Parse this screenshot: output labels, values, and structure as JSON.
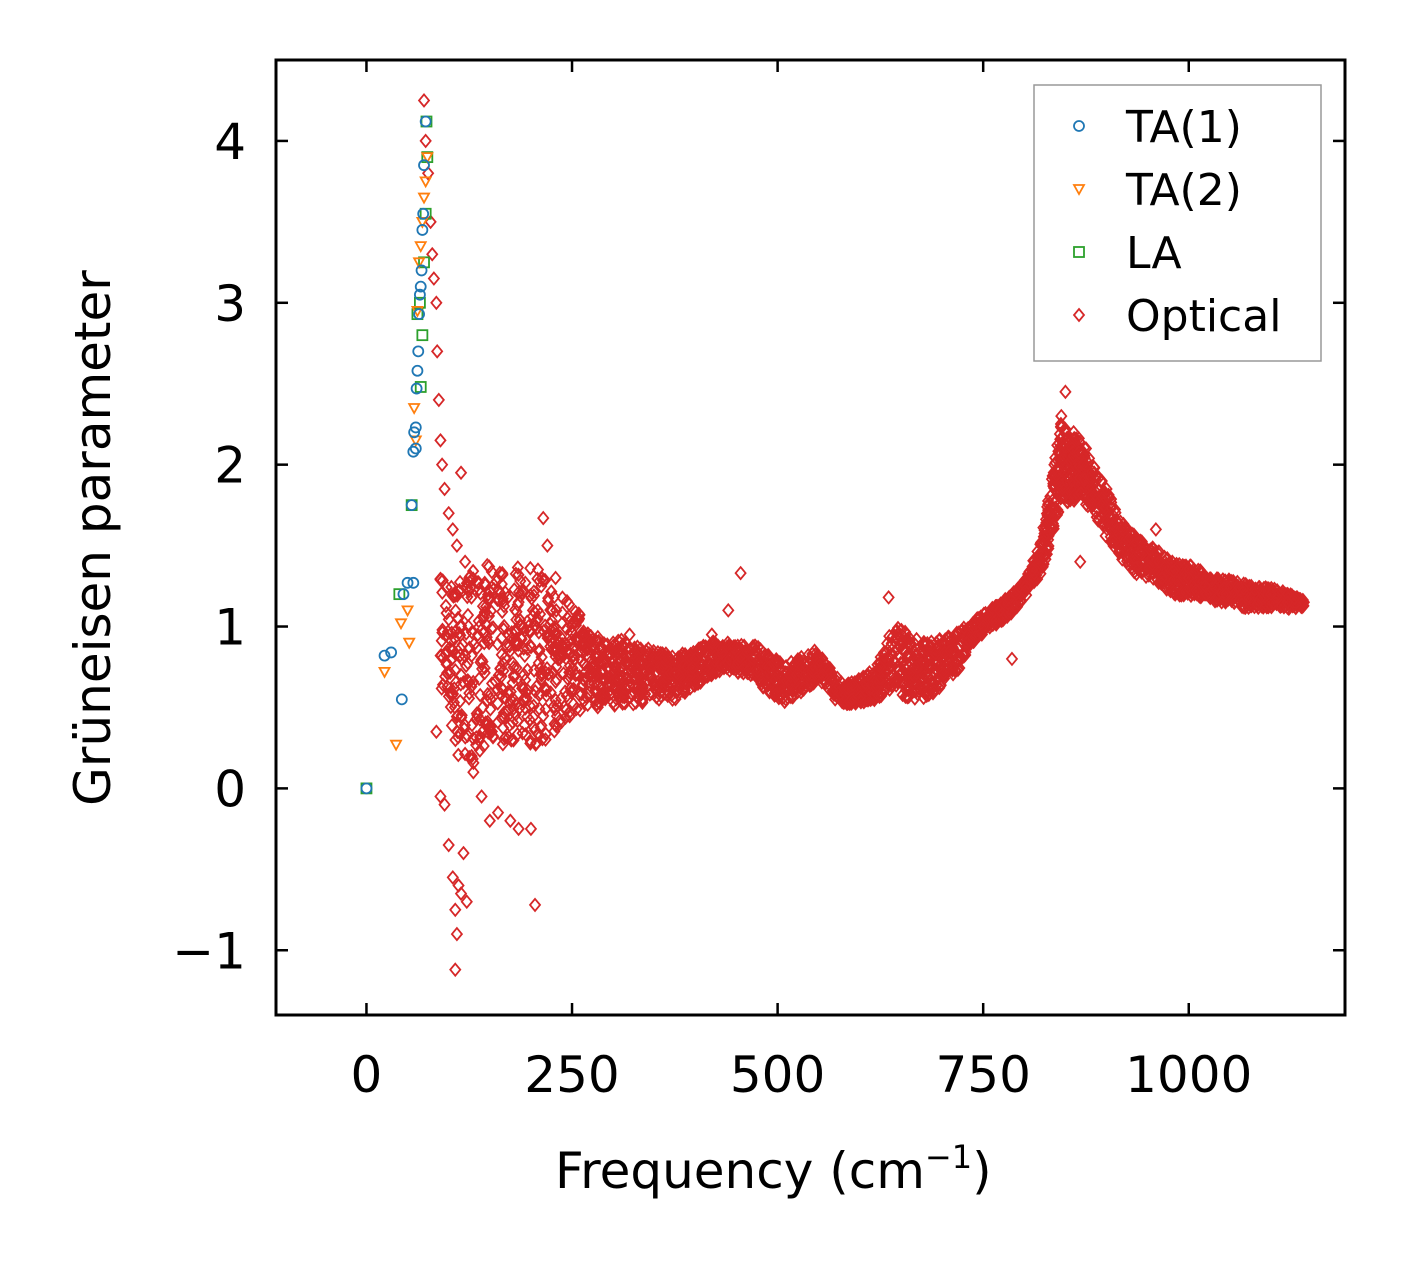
{
  "chart_data": {
    "type": "scatter",
    "title": "",
    "xlabel": "Frequency (cm",
    "xlabel_sup": "−1",
    "xlabel_close": ")",
    "ylabel": "Grüneisen parameter",
    "xlim": [
      -110,
      1190
    ],
    "ylim": [
      -1.4,
      4.5
    ],
    "xticks": [
      0,
      250,
      500,
      750,
      1000
    ],
    "xtick_labels": [
      "0",
      "250",
      "500",
      "750",
      "1000"
    ],
    "yticks": [
      -1,
      0,
      1,
      2,
      3,
      4
    ],
    "ytick_labels": [
      "−1",
      "0",
      "1",
      "2",
      "3",
      "4"
    ],
    "legend_position": "top-right",
    "series": [
      {
        "name": "TA(1)",
        "marker": "circle",
        "color": "#1f77b4",
        "points": [
          [
            0,
            0
          ],
          [
            22,
            0.82
          ],
          [
            30,
            0.84
          ],
          [
            43,
            0.55
          ],
          [
            45,
            1.2
          ],
          [
            50,
            1.27
          ],
          [
            55,
            1.75
          ],
          [
            57,
            1.27
          ],
          [
            57,
            2.08
          ],
          [
            58,
            2.2
          ],
          [
            60,
            2.23
          ],
          [
            60,
            2.1
          ],
          [
            61,
            2.47
          ],
          [
            62,
            2.58
          ],
          [
            63,
            2.7
          ],
          [
            64,
            2.93
          ],
          [
            65,
            3.05
          ],
          [
            66,
            3.1
          ],
          [
            67,
            3.2
          ],
          [
            68,
            3.45
          ],
          [
            69,
            3.55
          ],
          [
            70,
            3.85
          ],
          [
            72,
            4.12
          ]
        ]
      },
      {
        "name": "TA(2)",
        "marker": "triangle-down",
        "color": "#ff7f0e",
        "points": [
          [
            22,
            0.72
          ],
          [
            36,
            0.27
          ],
          [
            42,
            1.02
          ],
          [
            50,
            1.1
          ],
          [
            52,
            0.9
          ],
          [
            58,
            2.35
          ],
          [
            60,
            2.15
          ],
          [
            62,
            2.95
          ],
          [
            64,
            3.25
          ],
          [
            66,
            3.35
          ],
          [
            68,
            3.5
          ],
          [
            70,
            3.65
          ],
          [
            72,
            3.75
          ],
          [
            74,
            3.9
          ]
        ]
      },
      {
        "name": "LA",
        "marker": "square",
        "color": "#2ca02c",
        "points": [
          [
            0,
            0
          ],
          [
            40,
            1.2
          ],
          [
            55,
            1.75
          ],
          [
            62,
            2.93
          ],
          [
            65,
            3.0
          ],
          [
            66,
            2.48
          ],
          [
            68,
            2.8
          ],
          [
            70,
            3.25
          ],
          [
            72,
            3.55
          ],
          [
            74,
            3.9
          ],
          [
            73,
            4.12
          ]
        ]
      },
      {
        "name": "Optical",
        "marker": "diamond",
        "color": "#d62728",
        "points": [
          [
            70,
            4.25
          ],
          [
            72,
            4.0
          ],
          [
            75,
            3.8
          ],
          [
            78,
            3.5
          ],
          [
            80,
            3.3
          ],
          [
            82,
            3.15
          ],
          [
            85,
            3.0
          ],
          [
            86,
            2.7
          ],
          [
            88,
            2.4
          ],
          [
            90,
            2.15
          ],
          [
            92,
            2.0
          ],
          [
            95,
            1.85
          ],
          [
            100,
            1.7
          ],
          [
            105,
            1.6
          ],
          [
            110,
            1.5
          ],
          [
            115,
            1.95
          ],
          [
            120,
            1.4
          ],
          [
            125,
            1.3
          ],
          [
            85,
            0.35
          ],
          [
            90,
            -0.05
          ],
          [
            95,
            -0.1
          ],
          [
            100,
            -0.35
          ],
          [
            105,
            -0.55
          ],
          [
            108,
            -0.75
          ],
          [
            110,
            -0.9
          ],
          [
            112,
            -0.6
          ],
          [
            115,
            -0.65
          ],
          [
            118,
            -0.4
          ],
          [
            122,
            -0.7
          ],
          [
            108,
            -1.12
          ],
          [
            130,
            0.1
          ],
          [
            140,
            -0.05
          ],
          [
            150,
            -0.2
          ],
          [
            160,
            -0.15
          ],
          [
            175,
            -0.2
          ],
          [
            185,
            -0.25
          ],
          [
            200,
            -0.25
          ],
          [
            205,
            -0.72
          ],
          [
            215,
            1.67
          ],
          [
            220,
            1.5
          ],
          [
            230,
            1.3
          ],
          [
            250,
            1.0
          ],
          [
            280,
            0.8
          ],
          [
            300,
            0.9
          ],
          [
            320,
            0.95
          ],
          [
            340,
            0.85
          ],
          [
            360,
            0.75
          ],
          [
            380,
            0.7
          ],
          [
            400,
            0.8
          ],
          [
            420,
            0.95
          ],
          [
            440,
            1.1
          ],
          [
            455,
            1.33
          ],
          [
            470,
            0.8
          ],
          [
            490,
            0.75
          ],
          [
            510,
            0.55
          ],
          [
            530,
            0.75
          ],
          [
            545,
            0.85
          ],
          [
            555,
            0.7
          ],
          [
            570,
            0.55
          ],
          [
            590,
            0.55
          ],
          [
            610,
            0.7
          ],
          [
            625,
            0.75
          ],
          [
            635,
            1.18
          ],
          [
            650,
            0.9
          ],
          [
            670,
            0.75
          ],
          [
            690,
            0.6
          ],
          [
            710,
            0.85
          ],
          [
            730,
            0.9
          ],
          [
            750,
            1.0
          ],
          [
            770,
            1.1
          ],
          [
            785,
            0.8
          ],
          [
            790,
            1.2
          ],
          [
            810,
            1.35
          ],
          [
            830,
            1.7
          ],
          [
            845,
            2.3
          ],
          [
            850,
            2.45
          ],
          [
            860,
            2.2
          ],
          [
            868,
            1.4
          ],
          [
            875,
            2.1
          ],
          [
            885,
            1.95
          ],
          [
            900,
            1.85
          ],
          [
            920,
            1.6
          ],
          [
            940,
            1.45
          ],
          [
            960,
            1.6
          ],
          [
            980,
            1.4
          ],
          [
            1000,
            1.3
          ],
          [
            1020,
            1.25
          ],
          [
            1040,
            1.15
          ],
          [
            1060,
            1.25
          ],
          [
            1080,
            1.2
          ],
          [
            1100,
            1.2
          ],
          [
            1120,
            1.15
          ],
          [
            1140,
            1.15
          ]
        ]
      }
    ],
    "optical_band": {
      "centers": [
        [
          90,
          1.0
        ],
        [
          110,
          0.75
        ],
        [
          130,
          0.75
        ],
        [
          150,
          0.85
        ],
        [
          170,
          0.8
        ],
        [
          190,
          0.85
        ],
        [
          210,
          0.8
        ],
        [
          230,
          0.8
        ],
        [
          250,
          0.8
        ],
        [
          270,
          0.75
        ],
        [
          290,
          0.7
        ],
        [
          310,
          0.72
        ],
        [
          330,
          0.7
        ],
        [
          350,
          0.7
        ],
        [
          370,
          0.68
        ],
        [
          390,
          0.72
        ],
        [
          410,
          0.78
        ],
        [
          430,
          0.82
        ],
        [
          450,
          0.8
        ],
        [
          470,
          0.78
        ],
        [
          490,
          0.7
        ],
        [
          510,
          0.65
        ],
        [
          530,
          0.72
        ],
        [
          550,
          0.75
        ],
        [
          580,
          0.58
        ],
        [
          600,
          0.6
        ],
        [
          620,
          0.65
        ],
        [
          640,
          0.82
        ],
        [
          660,
          0.75
        ],
        [
          680,
          0.72
        ],
        [
          700,
          0.78
        ],
        [
          720,
          0.85
        ],
        [
          740,
          0.98
        ],
        [
          760,
          1.05
        ],
        [
          780,
          1.12
        ],
        [
          800,
          1.22
        ],
        [
          820,
          1.42
        ],
        [
          835,
          1.75
        ],
        [
          845,
          2.05
        ],
        [
          855,
          1.95
        ],
        [
          865,
          2.0
        ],
        [
          880,
          1.88
        ],
        [
          900,
          1.7
        ],
        [
          920,
          1.52
        ],
        [
          940,
          1.42
        ],
        [
          960,
          1.38
        ],
        [
          980,
          1.3
        ],
        [
          1000,
          1.28
        ],
        [
          1020,
          1.26
        ],
        [
          1040,
          1.22
        ],
        [
          1060,
          1.2
        ],
        [
          1080,
          1.18
        ],
        [
          1100,
          1.18
        ],
        [
          1120,
          1.16
        ],
        [
          1140,
          1.14
        ]
      ],
      "spreads": [
        0.35,
        0.55,
        0.6,
        0.55,
        0.55,
        0.55,
        0.55,
        0.45,
        0.35,
        0.25,
        0.2,
        0.2,
        0.18,
        0.16,
        0.15,
        0.12,
        0.12,
        0.1,
        0.08,
        0.12,
        0.12,
        0.12,
        0.12,
        0.08,
        0.06,
        0.08,
        0.1,
        0.2,
        0.2,
        0.18,
        0.15,
        0.12,
        0.06,
        0.06,
        0.06,
        0.06,
        0.1,
        0.2,
        0.25,
        0.2,
        0.2,
        0.15,
        0.15,
        0.12,
        0.12,
        0.1,
        0.1,
        0.1,
        0.08,
        0.08,
        0.08,
        0.07,
        0.06,
        0.05,
        0.03
      ]
    }
  }
}
